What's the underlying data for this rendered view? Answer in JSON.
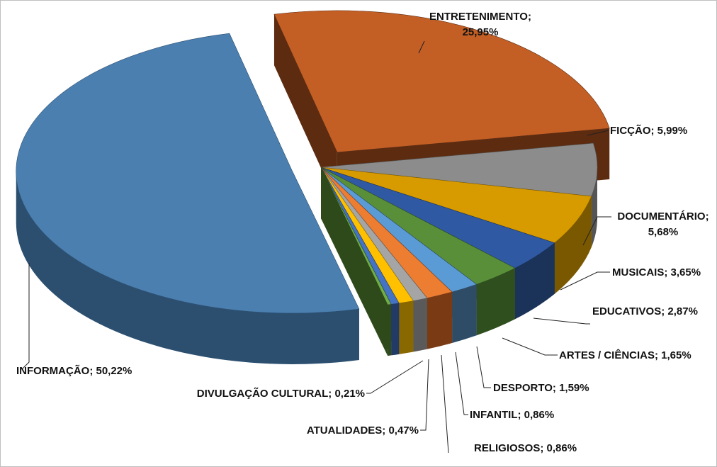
{
  "chart_data": {
    "type": "pie",
    "style": "3d-exploded",
    "title": "",
    "slices": [
      {
        "name": "INFORMAÇÃO",
        "value": 50.22,
        "label": "INFORMAÇÃO; 50,22%",
        "color": "#4a7fb0",
        "side": "#2c4f70",
        "exploded": true
      },
      {
        "name": "ENTRETENIMENTO",
        "value": 25.95,
        "label_line1": "ENTRETENIMENTO;",
        "label_line2": "25,95%",
        "color": "#c35f25",
        "side": "#5c2b10",
        "exploded": true
      },
      {
        "name": "FICÇÃO",
        "value": 5.99,
        "label": "FICÇÃO; 5,99%",
        "color": "#8c8c8c",
        "side": "#555555"
      },
      {
        "name": "DOCUMENTÁRIO",
        "value": 5.68,
        "label_line1": "DOCUMENTÁRIO;",
        "label_line2": "5,68%",
        "color": "#d79b00",
        "side": "#7a5800"
      },
      {
        "name": "MUSICAIS",
        "value": 3.65,
        "label": "MUSICAIS; 3,65%",
        "color": "#3059a3",
        "side": "#1b3358"
      },
      {
        "name": "EDUCATIVOS",
        "value": 2.87,
        "label": "EDUCATIVOS; 2,87%",
        "color": "#5a8f3a",
        "side": "#2f4f1e"
      },
      {
        "name": "ARTES / CIÊNCIAS",
        "value": 1.65,
        "label": "ARTES / CIÊNCIAS; 1,65%",
        "color": "#5b9bd5",
        "side": "#2e4c66"
      },
      {
        "name": "DESPORTO",
        "value": 1.59,
        "label": "DESPORTO; 1,59%",
        "color": "#ed7d31",
        "side": "#7a3a14"
      },
      {
        "name": "INFANTIL",
        "value": 0.86,
        "label": "INFANTIL; 0,86%",
        "color": "#a5a5a5",
        "side": "#5a5a5a"
      },
      {
        "name": "RELIGIOSOS",
        "value": 0.86,
        "label": "RELIGIOSOS; 0,86%",
        "color": "#ffc000",
        "side": "#8a6800"
      },
      {
        "name": "ATUALIDADES",
        "value": 0.47,
        "label": "ATUALIDADES; 0,47%",
        "color": "#4472c4",
        "side": "#223a66"
      },
      {
        "name": "DIVULGAÇÃO CULTURAL",
        "value": 0.21,
        "label": "DIVULGAÇÃO CULTURAL; 0,21%",
        "color": "#70ad47",
        "side": "#2e4a1a"
      }
    ],
    "legend": "none",
    "data_labels": "outside-with-leaders"
  }
}
